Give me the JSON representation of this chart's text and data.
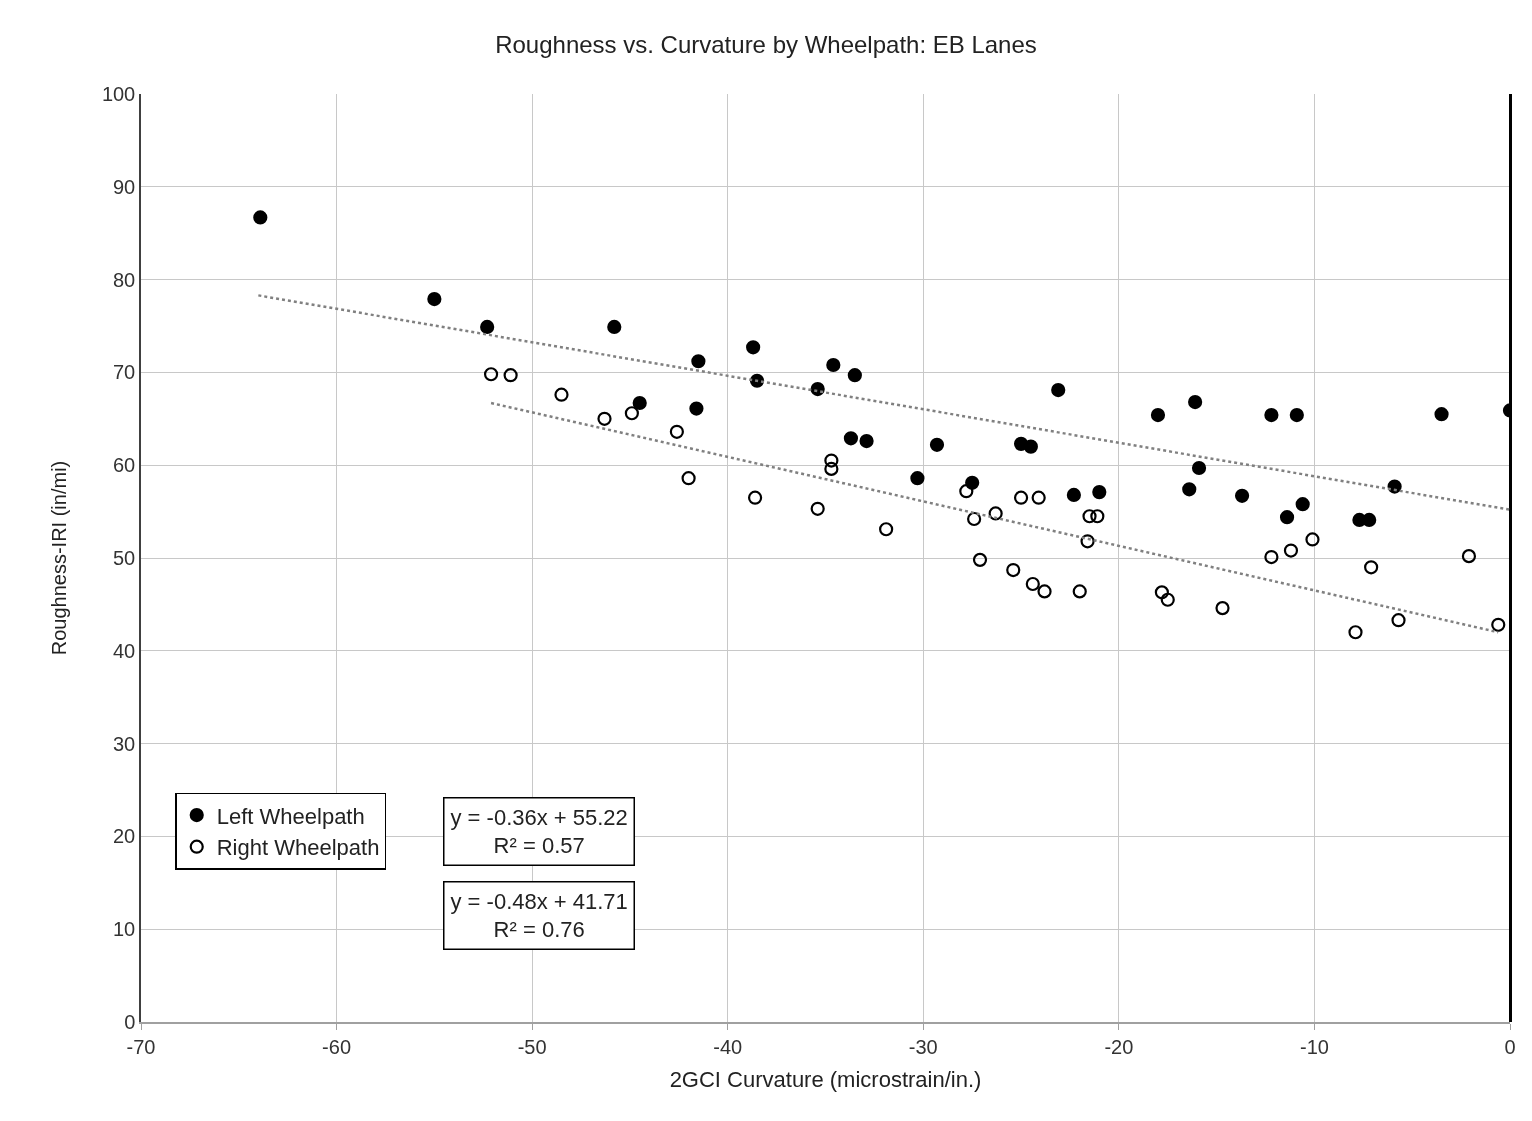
{
  "chart_data": {
    "type": "scatter",
    "title": "Roughness vs. Curvature by Wheelpath: EB Lanes",
    "xlabel": "2GCI Curvature (microstrain/in.)",
    "ylabel": "Roughness-IRI (in/mi)",
    "xlim": [
      -70,
      0
    ],
    "xticks": [
      -70,
      -60,
      -50,
      -40,
      -30,
      -20,
      -10,
      0
    ],
    "ylim": [
      0,
      100
    ],
    "yticks": [
      0,
      10,
      20,
      30,
      40,
      50,
      60,
      70,
      80,
      90,
      100
    ],
    "grid": true,
    "legend": "bottom left",
    "marker": "circle",
    "annotations": [
      "y = -0.36x + 55.22\nR² = 0.57",
      "y = -0.48x + 41.71\nR² = 0.76"
    ],
    "series": [
      {
        "name": "Left Wheelpath",
        "color": "#000000",
        "x": [
          -63.9,
          -55.0,
          -52.3,
          -45.8,
          -44.5,
          -41.5,
          -41.6,
          -38.7,
          -38.5,
          -35.4,
          -34.6,
          -33.5,
          -33.7,
          -32.9,
          -30.3,
          -29.3,
          -27.5,
          -25.0,
          -24.5,
          -23.1,
          -22.3,
          -21.0,
          -18.0,
          -16.4,
          -16.1,
          -15.9,
          -13.7,
          -12.2,
          -11.4,
          -10.9,
          -10.6,
          -7.7,
          -7.2,
          -5.9,
          -3.5,
          0.0
        ],
        "values": [
          86.7,
          77.9,
          74.9,
          74.9,
          66.7,
          71.2,
          66.1,
          72.7,
          69.1,
          68.2,
          70.8,
          69.7,
          62.9,
          62.6,
          58.6,
          62.2,
          58.1,
          62.3,
          62.0,
          68.1,
          56.8,
          57.1,
          65.4,
          57.4,
          66.8,
          59.7,
          56.7,
          65.4,
          54.4,
          65.4,
          55.8,
          54.1,
          54.1,
          57.7,
          65.5,
          65.9
        ]
      },
      {
        "name": "Right Wheelpath",
        "color": "#000000",
        "x": [
          -52.1,
          -51.1,
          -48.5,
          -46.3,
          -44.9,
          -42.6,
          -42.0,
          -38.6,
          -35.4,
          -34.7,
          -34.7,
          -31.9,
          -27.8,
          -27.4,
          -26.3,
          -27.1,
          -25.4,
          -25.0,
          -24.1,
          -24.4,
          -23.8,
          -22.0,
          -21.6,
          -21.5,
          -21.1,
          -17.8,
          -17.5,
          -14.7,
          -12.2,
          -11.2,
          -10.1,
          -7.9,
          -7.1,
          -5.7,
          -2.1,
          -0.6
        ],
        "values": [
          69.8,
          69.7,
          67.6,
          65.0,
          65.6,
          63.6,
          58.6,
          56.5,
          55.3,
          60.5,
          59.6,
          53.1,
          57.2,
          54.2,
          54.8,
          49.8,
          48.7,
          56.5,
          56.5,
          47.2,
          46.4,
          46.4,
          51.8,
          54.5,
          54.5,
          46.3,
          45.5,
          44.6,
          50.1,
          50.8,
          52.0,
          42.0,
          49.0,
          43.3,
          50.2,
          42.8
        ]
      },
      {
        "type": "line",
        "color": "#808080",
        "line_style": "dotted",
        "marker": "none",
        "x": [
          -64.0,
          0.0
        ],
        "values": [
          78.3,
          55.2
        ]
      },
      {
        "type": "line",
        "color": "#808080",
        "line_style": "dotted",
        "marker": "none",
        "x": [
          -52.1,
          -0.6
        ],
        "values": [
          66.7,
          42.0
        ]
      }
    ]
  }
}
